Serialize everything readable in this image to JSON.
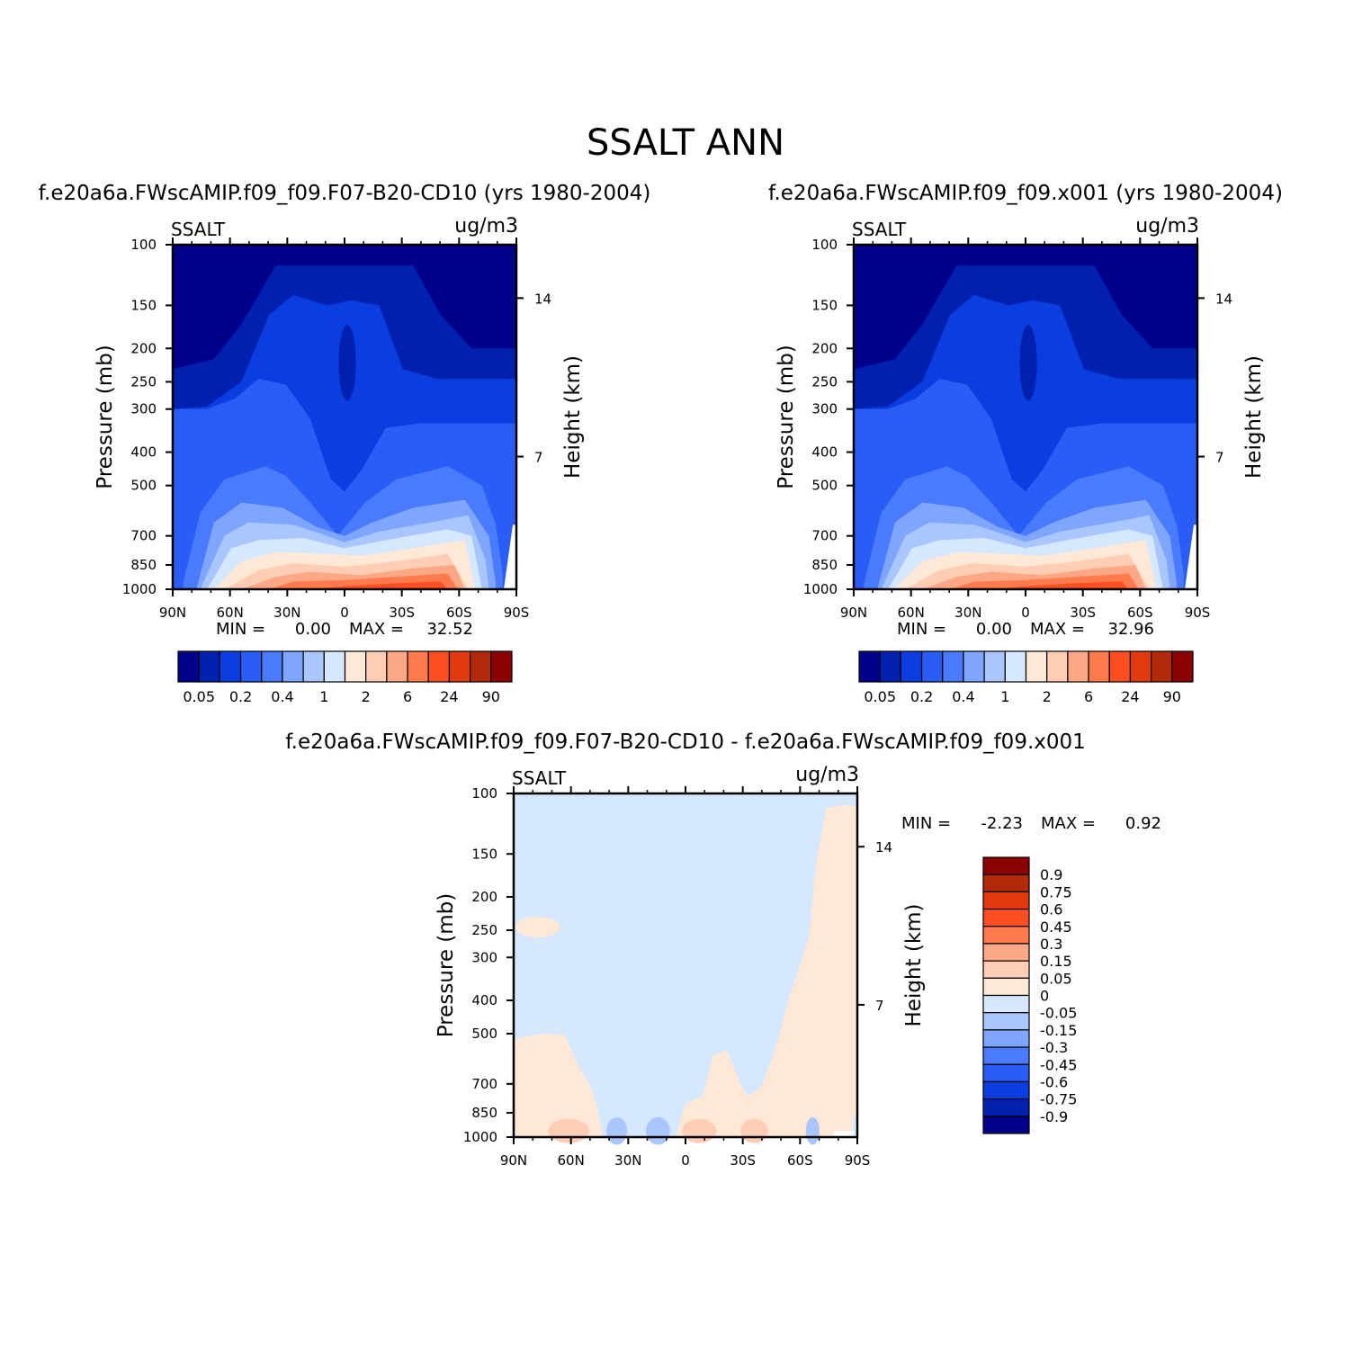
{
  "figure_title": "SSALT ANN",
  "colors": {
    "abs_levels": [
      "#00008b",
      "#0021b0",
      "#0a3ee0",
      "#2a5df5",
      "#4a7bff",
      "#7ea6ff",
      "#a9c6ff",
      "#d6e8ff",
      "#ffe8d6",
      "#ffcdb3",
      "#fca886",
      "#ff7b4e",
      "#ff4f22",
      "#e03a0e",
      "#b32a0a",
      "#8b0000"
    ],
    "diff_levels": [
      "#00008b",
      "#0021b0",
      "#0a3ee0",
      "#2a5df5",
      "#4a7bff",
      "#7ea6ff",
      "#a9c6ff",
      "#d6e8ff",
      "#ffe8d6",
      "#ffcdb3",
      "#fca886",
      "#ff7b4e",
      "#ff4f22",
      "#e03a0e",
      "#b32a0a",
      "#8b0000"
    ]
  },
  "chart_data": [
    {
      "type": "heatmap",
      "title": "f.e20a6a.FWscAMIP.f09_f09.F07-B20-CD10 (yrs 1980-2004)",
      "left_label": "SSALT",
      "right_label": "ug/m3",
      "xlabel": "",
      "ylabel": "Pressure (mb)",
      "ylabel_right": "Height (km)",
      "x_ticks": [
        "90N",
        "60N",
        "30N",
        "0",
        "30S",
        "60S",
        "90S"
      ],
      "y_ticks": [
        100,
        150,
        200,
        250,
        300,
        400,
        500,
        700,
        850,
        1000
      ],
      "y_right_ticks": [
        14,
        7
      ],
      "y_scale": "log",
      "ylim": [
        1000,
        100
      ],
      "min_label": "MIN =",
      "min_value": "0.00",
      "max_label": "MAX =",
      "max_value": "32.52",
      "colorbar_labels": [
        "0.05",
        "0.2",
        "0.4",
        "1",
        "2",
        "6",
        "24",
        "90"
      ],
      "colorbar_orientation": "horizontal"
    },
    {
      "type": "heatmap",
      "title": "f.e20a6a.FWscAMIP.f09_f09.x001 (yrs 1980-2004)",
      "left_label": "SSALT",
      "right_label": "ug/m3",
      "xlabel": "",
      "ylabel": "Pressure (mb)",
      "ylabel_right": "Height (km)",
      "x_ticks": [
        "90N",
        "60N",
        "30N",
        "0",
        "30S",
        "60S",
        "90S"
      ],
      "y_ticks": [
        100,
        150,
        200,
        250,
        300,
        400,
        500,
        700,
        850,
        1000
      ],
      "y_right_ticks": [
        14,
        7
      ],
      "y_scale": "log",
      "ylim": [
        1000,
        100
      ],
      "min_label": "MIN =",
      "min_value": "0.00",
      "max_label": "MAX =",
      "max_value": "32.96",
      "colorbar_labels": [
        "0.05",
        "0.2",
        "0.4",
        "1",
        "2",
        "6",
        "24",
        "90"
      ],
      "colorbar_orientation": "horizontal"
    },
    {
      "type": "heatmap",
      "title": "f.e20a6a.FWscAMIP.f09_f09.F07-B20-CD10 - f.e20a6a.FWscAMIP.f09_f09.x001",
      "left_label": "SSALT",
      "right_label": "ug/m3",
      "xlabel": "",
      "ylabel": "Pressure (mb)",
      "ylabel_right": "Height (km)",
      "x_ticks": [
        "90N",
        "60N",
        "30N",
        "0",
        "30S",
        "60S",
        "90S"
      ],
      "y_ticks": [
        100,
        150,
        200,
        250,
        300,
        400,
        500,
        700,
        850,
        1000
      ],
      "y_right_ticks": [
        14,
        7
      ],
      "y_scale": "log",
      "ylim": [
        1000,
        100
      ],
      "min_label": "MIN =",
      "min_value": "-2.23",
      "max_label": "MAX =",
      "max_value": "0.92",
      "colorbar_labels": [
        "0.9",
        "0.75",
        "0.6",
        "0.45",
        "0.3",
        "0.15",
        "0.05",
        "0",
        "-0.05",
        "-0.15",
        "-0.3",
        "-0.45",
        "-0.6",
        "-0.75",
        "-0.9"
      ],
      "colorbar_orientation": "vertical"
    }
  ]
}
